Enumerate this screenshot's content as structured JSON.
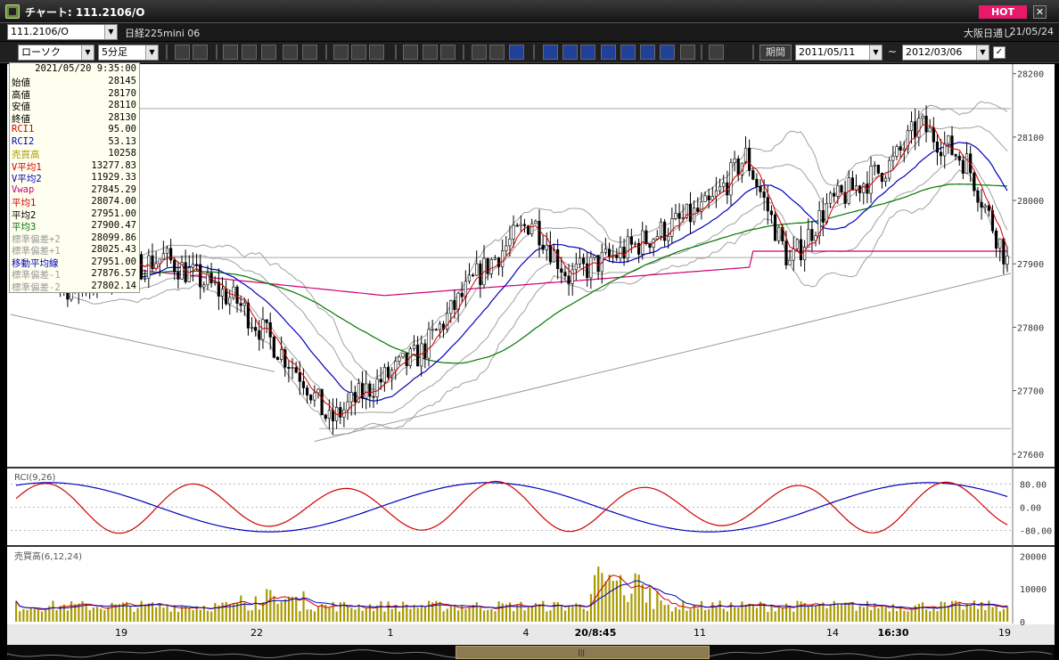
{
  "window": {
    "title": "チャート: 111.2106/O",
    "hot_label": "HOT",
    "close_label": "✕"
  },
  "symbol_bar": {
    "code": "111.2106/O",
    "name": "日経225mini 06",
    "session": "大阪日通し",
    "date": "21/05/24"
  },
  "toolbar": {
    "chart_type": "ローソク",
    "interval": "5分足",
    "period_label": "期間",
    "start_date": "2011/05/11",
    "end_date": "2012/03/06",
    "tilde": "~",
    "buttons": [
      "search",
      "zoom",
      "bar",
      "fork",
      "candle",
      "table",
      "cursor",
      "arrow-up",
      "pencil",
      "line",
      "pin",
      "ALL",
      "drag",
      "wrench",
      "palette",
      "WMA",
      "MA",
      "BB",
      "MAE",
      "HL",
      "ATR",
      "PARA",
      "PVT",
      "Log",
      "grid"
    ]
  },
  "info_panel": {
    "datetime": "2021/05/20 9:35:00",
    "rows": [
      {
        "label": "始値",
        "value": "28145",
        "color": "#000000"
      },
      {
        "label": "高値",
        "value": "28170",
        "color": "#000000"
      },
      {
        "label": "安値",
        "value": "28110",
        "color": "#000000"
      },
      {
        "label": "終値",
        "value": "28130",
        "color": "#000000"
      },
      {
        "label": "RCI1",
        "value": "95.00",
        "color": "#d00000"
      },
      {
        "label": "RCI2",
        "value": "53.13",
        "color": "#0000c0"
      },
      {
        "label": "売買高",
        "value": "10258",
        "color": "#a89a00"
      },
      {
        "label": "V平均1",
        "value": "13277.83",
        "color": "#d00000"
      },
      {
        "label": "V平均2",
        "value": "11929.33",
        "color": "#0000c0"
      },
      {
        "label": "Vwap",
        "value": "27845.29",
        "color": "#cc0077"
      },
      {
        "label": "平均1",
        "value": "28074.00",
        "color": "#d00000"
      },
      {
        "label": "平均2",
        "value": "27951.00",
        "color": "#000000"
      },
      {
        "label": "平均3",
        "value": "27900.47",
        "color": "#007700"
      },
      {
        "label": "標準偏差+2",
        "value": "28099.86",
        "color": "#9a9a9a"
      },
      {
        "label": "標準偏差+1",
        "value": "28025.43",
        "color": "#9a9a9a"
      },
      {
        "label": "移動平均線",
        "value": "27951.00",
        "color": "#0000c0"
      },
      {
        "label": "標準偏差-1",
        "value": "27876.57",
        "color": "#9a9a9a"
      },
      {
        "label": "標準偏差-2",
        "value": "27802.14",
        "color": "#9a9a9a"
      }
    ]
  },
  "price_axis": {
    "ticks": [
      "28200",
      "28100",
      "28000",
      "27900",
      "27800",
      "27700",
      "27600"
    ]
  },
  "rci_panel": {
    "label": "RCI(9,26)",
    "ticks": [
      "80.00",
      "0.00",
      "-80.00"
    ]
  },
  "volume_panel": {
    "label": "売買高(6,12,24)",
    "ticks": [
      "20000",
      "10000",
      "0"
    ]
  },
  "time_axis": {
    "labels": [
      "19",
      "22",
      "1",
      "4",
      "20/8:45",
      "11",
      "14",
      "16:30",
      "19"
    ]
  },
  "colors": {
    "candle_up": "#ffffff",
    "candle_down": "#000000",
    "ma1": "#d00000",
    "ma2": "#0000c0",
    "ma3": "#007700",
    "vwap": "#cc0077",
    "band": "#a0a0a0",
    "volume_bar": "#a89a00",
    "rci1": "#d00000",
    "rci2": "#0000c0"
  }
}
